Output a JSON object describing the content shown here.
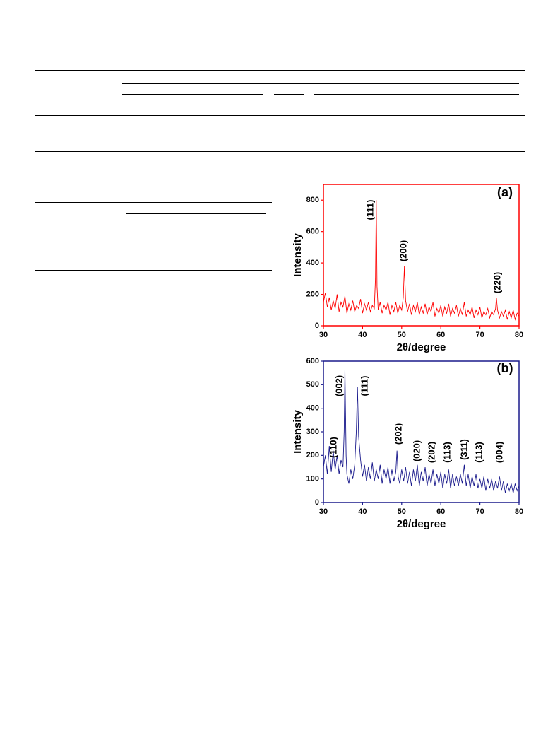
{
  "chart_data": [
    {
      "type": "line",
      "color": "#ff0000",
      "xlabel": "2θ/degree",
      "ylabel": "Intensity",
      "annotations": [
        "(111)",
        "(200)",
        "(220)",
        "(a)"
      ],
      "xlim": [
        30,
        80
      ],
      "xticks": [
        30,
        40,
        50,
        60,
        70,
        80
      ],
      "ylim": [
        0,
        900
      ],
      "yticks": [
        0,
        200,
        400,
        600,
        800
      ],
      "x": [
        30,
        30.5,
        31,
        31.5,
        32,
        32.5,
        33,
        33.5,
        34,
        34.5,
        35,
        35.5,
        36,
        36.5,
        37,
        37.5,
        38,
        38.5,
        39,
        39.5,
        40,
        40.5,
        41,
        41.5,
        42,
        42.5,
        43,
        43.3,
        43.5,
        43.7,
        44,
        44.5,
        45,
        45.5,
        46,
        46.5,
        47,
        47.5,
        48,
        48.5,
        49,
        49.5,
        50,
        50.4,
        50.7,
        51,
        51.5,
        52,
        52.5,
        53,
        53.5,
        54,
        54.5,
        55,
        55.5,
        56,
        56.5,
        57,
        57.5,
        58,
        58.5,
        59,
        59.5,
        60,
        60.5,
        61,
        61.5,
        62,
        62.5,
        63,
        63.5,
        64,
        64.5,
        65,
        65.5,
        66,
        66.5,
        67,
        67.5,
        68,
        68.5,
        69,
        69.5,
        70,
        70.5,
        71,
        71.5,
        72,
        72.5,
        73,
        73.5,
        74,
        74.2,
        74.5,
        75,
        75.5,
        76,
        76.5,
        77,
        77.5,
        78,
        78.5,
        79,
        79.5,
        80
      ],
      "values": [
        150,
        210,
        120,
        180,
        100,
        160,
        110,
        200,
        90,
        150,
        120,
        190,
        80,
        140,
        100,
        160,
        90,
        130,
        110,
        170,
        80,
        140,
        100,
        150,
        90,
        130,
        110,
        300,
        800,
        250,
        100,
        150,
        80,
        130,
        100,
        150,
        70,
        130,
        90,
        150,
        80,
        130,
        100,
        180,
        380,
        160,
        90,
        140,
        70,
        130,
        90,
        150,
        70,
        120,
        80,
        140,
        70,
        120,
        90,
        150,
        60,
        110,
        80,
        130,
        60,
        120,
        80,
        140,
        60,
        110,
        80,
        130,
        60,
        110,
        70,
        150,
        60,
        100,
        70,
        120,
        50,
        100,
        70,
        120,
        50,
        90,
        70,
        110,
        50,
        90,
        70,
        110,
        180,
        100,
        50,
        90,
        60,
        100,
        40,
        90,
        50,
        100,
        40,
        80,
        60
      ]
    },
    {
      "type": "line",
      "color": "#1a1a8c",
      "xlabel": "2θ/degree",
      "ylabel": "Intensity",
      "annotations": [
        "(110)",
        "(002)",
        "(111)",
        "(202)",
        "(020)",
        "(202)",
        "(113)",
        "(311)",
        "(113)",
        "(004)",
        "(b)"
      ],
      "xlim": [
        30,
        80
      ],
      "xticks": [
        30,
        40,
        50,
        60,
        70,
        80
      ],
      "ylim": [
        0,
        600
      ],
      "yticks": [
        0,
        100,
        200,
        300,
        400,
        500,
        600
      ],
      "x": [
        30,
        30.5,
        31,
        31.5,
        32,
        32.5,
        33,
        33.5,
        34,
        34.5,
        35,
        35.3,
        35.5,
        35.8,
        36,
        36.5,
        37,
        37.5,
        38,
        38.4,
        38.7,
        39,
        39.5,
        40,
        40.5,
        41,
        41.5,
        42,
        42.5,
        43,
        43.5,
        44,
        44.5,
        45,
        45.5,
        46,
        46.5,
        47,
        47.5,
        48,
        48.5,
        48.8,
        49.1,
        49.5,
        50,
        50.5,
        51,
        51.5,
        52,
        52.5,
        53,
        53.5,
        54,
        54.5,
        55,
        55.5,
        56,
        56.5,
        57,
        57.5,
        58,
        58.5,
        59,
        59.5,
        60,
        60.5,
        61,
        61.5,
        62,
        62.5,
        63,
        63.5,
        64,
        64.5,
        65,
        65.5,
        66,
        66.5,
        67,
        67.5,
        68,
        68.5,
        69,
        69.5,
        70,
        70.5,
        71,
        71.5,
        72,
        72.5,
        73,
        73.5,
        74,
        74.5,
        75,
        75.5,
        76,
        76.5,
        77,
        77.5,
        78,
        78.5,
        79,
        79.5,
        80
      ],
      "values": [
        150,
        200,
        120,
        240,
        130,
        220,
        140,
        200,
        120,
        180,
        150,
        300,
        570,
        200,
        120,
        80,
        140,
        100,
        160,
        300,
        490,
        280,
        180,
        110,
        160,
        90,
        150,
        100,
        170,
        90,
        140,
        100,
        160,
        80,
        140,
        100,
        150,
        80,
        140,
        90,
        130,
        220,
        110,
        80,
        140,
        90,
        150,
        80,
        130,
        70,
        140,
        90,
        160,
        70,
        130,
        90,
        150,
        70,
        120,
        80,
        140,
        70,
        120,
        80,
        130,
        60,
        120,
        80,
        140,
        60,
        120,
        70,
        110,
        70,
        120,
        80,
        160,
        70,
        120,
        60,
        110,
        70,
        120,
        60,
        100,
        60,
        110,
        50,
        100,
        60,
        100,
        50,
        90,
        60,
        110,
        50,
        90,
        40,
        80,
        50,
        80,
        40,
        80,
        50,
        70
      ]
    }
  ]
}
